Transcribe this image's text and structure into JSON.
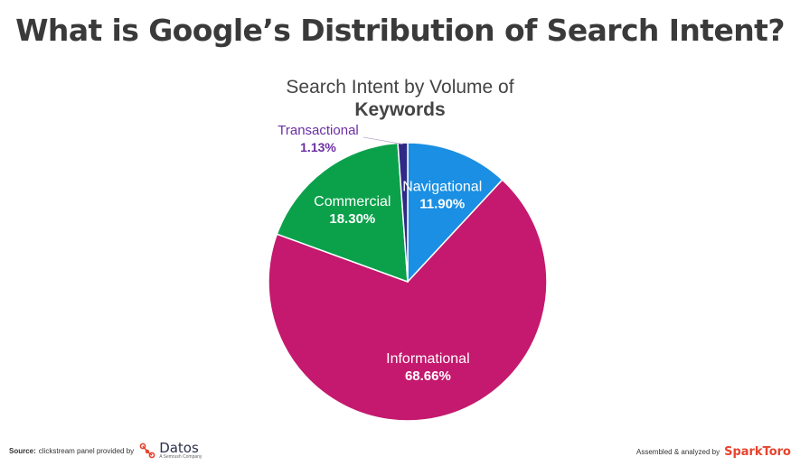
{
  "page": {
    "title": "What is Google’s Distribution of Search Intent?",
    "source_label": "Source:",
    "source_text": "clickstream panel provided by",
    "datos_name": "Datos",
    "datos_sub": "A Semrush Company",
    "assembled_text": "Assembled & analyzed by",
    "sparktoro_name": "SparkToro"
  },
  "chart_data": {
    "type": "pie",
    "title_line1": "Search Intent by Volume of",
    "title_line2": "Keywords",
    "categories": [
      "Navigational",
      "Informational",
      "Commercial",
      "Transactional"
    ],
    "values": [
      11.9,
      68.66,
      18.3,
      1.13
    ],
    "value_labels": [
      "11.90%",
      "68.66%",
      "18.30%",
      "1.13%"
    ],
    "colors": [
      "#1a8fe3",
      "#c4196e",
      "#0ba14b",
      "#2f2a85"
    ],
    "label_colors": [
      "#ffffff",
      "#ffffff",
      "#ffffff",
      "#6b2fa3"
    ],
    "start_angle_deg": 0,
    "direction": "clockwise"
  }
}
